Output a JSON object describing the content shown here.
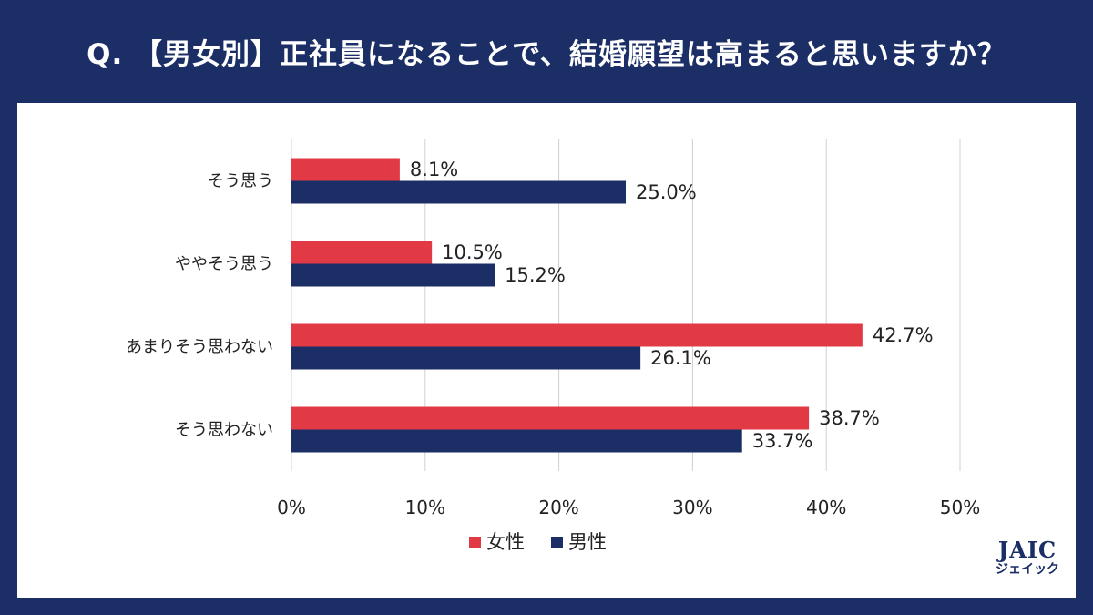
{
  "title": "Q. 【男女別】正社員になることで、結婚願望は高まると思いますか？",
  "logo": {
    "main": "JAIC",
    "sub": "ジェイック"
  },
  "colors": {
    "female": "#e23a45",
    "male": "#1b2f66",
    "grid": "#d0d0d0",
    "frame": "#1b2f66"
  },
  "chart_data": {
    "type": "bar",
    "orientation": "horizontal",
    "title": "Q. 【男女別】正社員になることで、結婚願望は高まると思いますか？",
    "categories": [
      "そう思う",
      "ややそう思う",
      "あまりそう思わない",
      "そう思わない"
    ],
    "series": [
      {
        "name": "女性",
        "values": [
          8.1,
          10.5,
          42.7,
          38.7
        ],
        "labels": [
          "8.1%",
          "10.5%",
          "42.7%",
          "38.7%"
        ]
      },
      {
        "name": "男性",
        "values": [
          25.0,
          15.2,
          26.1,
          33.7
        ],
        "labels": [
          "25.0%",
          "15.2%",
          "26.1%",
          "33.7%"
        ]
      }
    ],
    "xlim": [
      0,
      50
    ],
    "xticks": [
      0,
      10,
      20,
      30,
      40,
      50
    ],
    "xtick_labels": [
      "0%",
      "10%",
      "20%",
      "30%",
      "40%",
      "50%"
    ],
    "xlabel": "",
    "ylabel": "",
    "grid": true,
    "legend": "bottom-center"
  }
}
